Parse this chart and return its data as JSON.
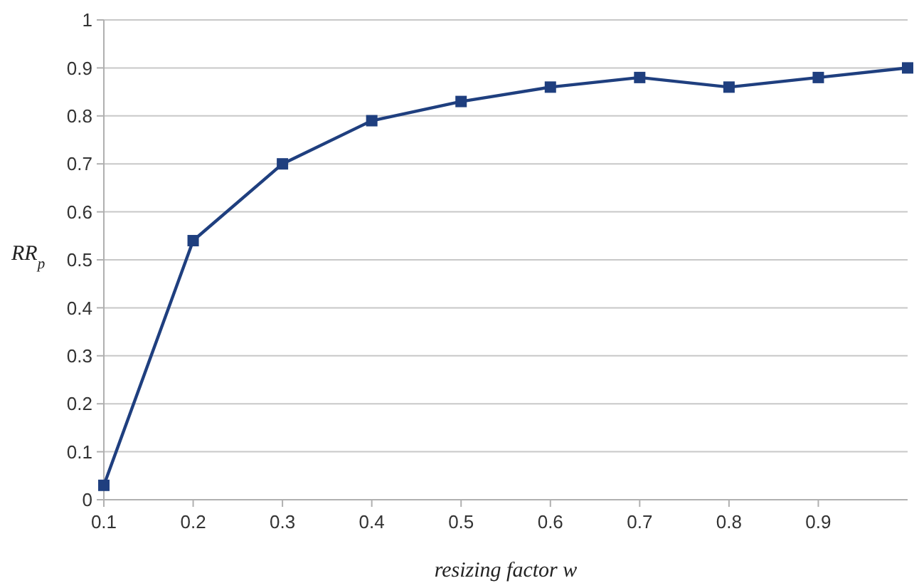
{
  "chart_data": {
    "type": "line",
    "xlabel": "resizing factor w",
    "ylabel": "RR$_{p}$",
    "x": [
      0.1,
      0.2,
      0.3,
      0.4,
      0.5,
      0.6,
      0.7,
      0.8,
      0.9,
      1.0
    ],
    "series": [
      {
        "color": "#1f3f7f",
        "values": [
          0.03,
          0.54,
          0.7,
          0.79,
          0.83,
          0.86,
          0.88,
          0.86,
          0.88,
          0.9
        ]
      }
    ],
    "xlim": [
      0.1,
      1.0
    ],
    "xticks": [
      0.1,
      0.2,
      0.3,
      0.4,
      0.5,
      0.6,
      0.7,
      0.8,
      0.9
    ],
    "ylim": [
      0,
      1
    ],
    "yticks": [
      0,
      0.1,
      0.2,
      0.3,
      0.4,
      0.5,
      0.6,
      0.7,
      0.8,
      0.9,
      1
    ],
    "grid": "y",
    "marker": "square",
    "line_style": "solid"
  }
}
